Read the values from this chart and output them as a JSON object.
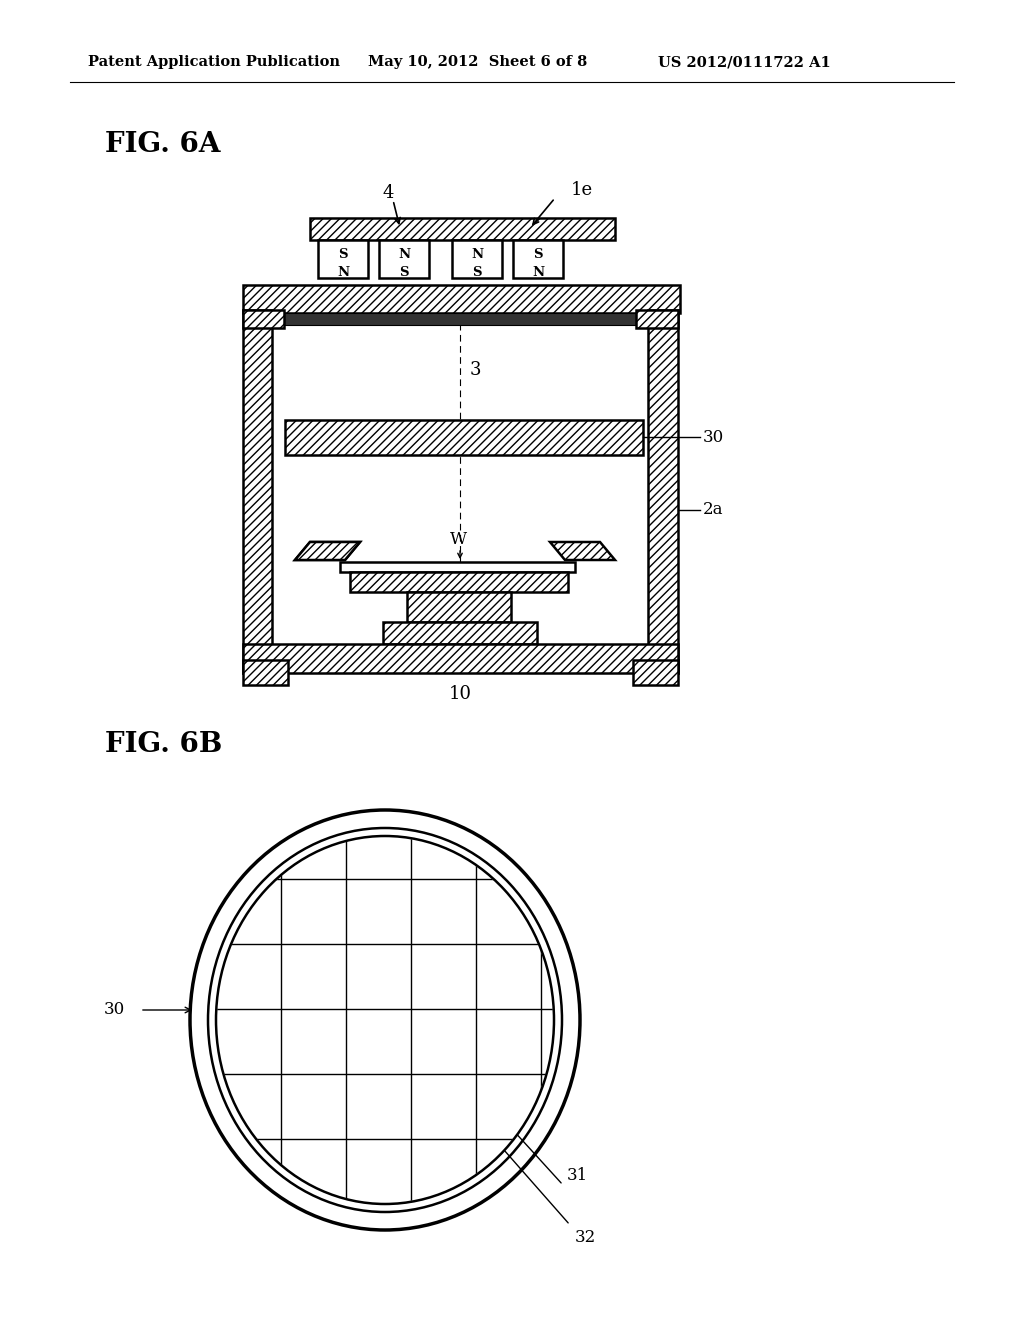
{
  "bg_color": "#ffffff",
  "header_text1": "Patent Application Publication",
  "header_text2": "May 10, 2012  Sheet 6 of 8",
  "header_text3": "US 2012/0111722 A1",
  "fig6a_label": "FIG. 6A",
  "fig6b_label": "FIG. 6B",
  "label_1e": "1e",
  "label_4": "4",
  "label_3": "3",
  "label_30": "30",
  "label_2a": "2a",
  "label_W": "W",
  "label_10": "10",
  "label_30b": "30",
  "label_31": "31",
  "label_32": "32"
}
